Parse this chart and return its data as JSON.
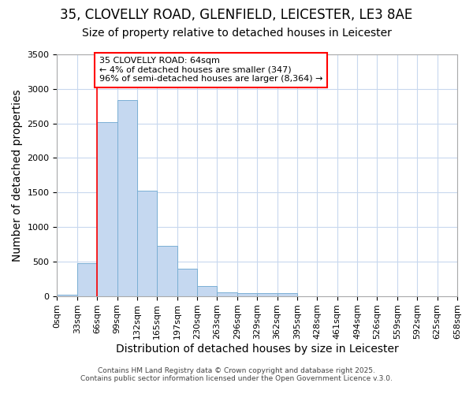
{
  "title1": "35, CLOVELLY ROAD, GLENFIELD, LEICESTER, LE3 8AE",
  "title2": "Size of property relative to detached houses in Leicester",
  "xlabel": "Distribution of detached houses by size in Leicester",
  "ylabel": "Number of detached properties",
  "bar_color": "#c5d8f0",
  "bar_edge_color": "#7aafd4",
  "background_color": "#ffffff",
  "fig_background_color": "#ffffff",
  "grid_color": "#c8d8ee",
  "bin_labels": [
    "0sqm",
    "33sqm",
    "66sqm",
    "99sqm",
    "132sqm",
    "165sqm",
    "197sqm",
    "230sqm",
    "263sqm",
    "296sqm",
    "329sqm",
    "362sqm",
    "395sqm",
    "428sqm",
    "461sqm",
    "494sqm",
    "526sqm",
    "559sqm",
    "592sqm",
    "625sqm",
    "658sqm"
  ],
  "bar_values": [
    20,
    480,
    2520,
    2840,
    1530,
    730,
    390,
    145,
    55,
    45,
    45,
    40,
    0,
    0,
    0,
    0,
    0,
    0,
    0,
    0
  ],
  "red_line_bin_index": 2,
  "annotation_text": "35 CLOVELLY ROAD: 64sqm\n← 4% of detached houses are smaller (347)\n96% of semi-detached houses are larger (8,364) →",
  "ylim": [
    0,
    3500
  ],
  "yticks": [
    0,
    500,
    1000,
    1500,
    2000,
    2500,
    3000,
    3500
  ],
  "title1_fontsize": 12,
  "title2_fontsize": 10,
  "axis_label_fontsize": 10,
  "tick_fontsize": 8,
  "annot_fontsize": 8,
  "footer_text": "Contains HM Land Registry data © Crown copyright and database right 2025.\nContains public sector information licensed under the Open Government Licence v.3.0."
}
